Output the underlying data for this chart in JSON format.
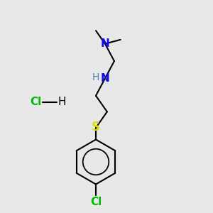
{
  "background_color": "#e8e8e8",
  "line_color": "#000000",
  "N_color": "#1010ee",
  "S_color": "#dddd00",
  "Cl_color": "#00bb00",
  "NH_H_color": "#4488aa",
  "bond_lw": 1.5,
  "font_size": 10,
  "figsize": [
    3.0,
    3.0
  ],
  "dpi": 100,
  "xlim": [
    0,
    10
  ],
  "ylim": [
    0,
    10
  ]
}
